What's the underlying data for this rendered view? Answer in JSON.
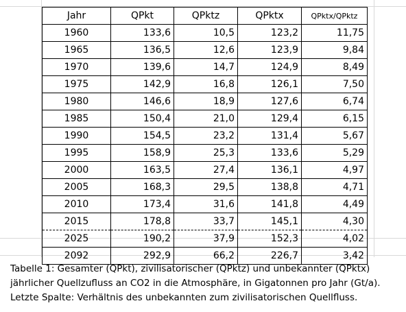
{
  "table": {
    "headers": [
      "Jahr",
      "QPkt",
      "QPktz",
      "QPktx",
      "QPktx/QPktz"
    ],
    "rows": [
      [
        "1960",
        "133,6",
        "10,5",
        "123,2",
        "11,75"
      ],
      [
        "1965",
        "136,5",
        "12,6",
        "123,9",
        "9,84"
      ],
      [
        "1970",
        "139,6",
        "14,7",
        "124,9",
        "8,49"
      ],
      [
        "1975",
        "142,9",
        "16,8",
        "126,1",
        "7,50"
      ],
      [
        "1980",
        "146,6",
        "18,9",
        "127,6",
        "6,74"
      ],
      [
        "1985",
        "150,4",
        "21,0",
        "129,4",
        "6,15"
      ],
      [
        "1990",
        "154,5",
        "23,2",
        "131,4",
        "5,67"
      ],
      [
        "1995",
        "158,9",
        "25,3",
        "133,6",
        "5,29"
      ],
      [
        "2000",
        "163,5",
        "27,4",
        "136,1",
        "4,97"
      ],
      [
        "2005",
        "168,3",
        "29,5",
        "138,8",
        "4,71"
      ],
      [
        "2010",
        "173,4",
        "31,6",
        "141,8",
        "4,49"
      ],
      [
        "2015",
        "178,8",
        "33,7",
        "145,1",
        "4,30"
      ],
      [
        "2025",
        "190,2",
        "37,9",
        "152,3",
        "4,02"
      ],
      [
        "2092",
        "292,9",
        "66,2",
        "226,7",
        "3,42"
      ]
    ]
  },
  "caption": {
    "line1": "Tabelle 1: Gesamter (QPkt), zivilisatorischer (QPktz) und unbekannter (QPktx)",
    "line2": "jährlicher Quellzufluss an CO2 in die Atmosphäre, in Gigatonnen pro Jahr (Gt/a).",
    "line3": "Letzte Spalte: Verhältnis des unbekannten zum zivilisatorischen Quellfluss."
  }
}
